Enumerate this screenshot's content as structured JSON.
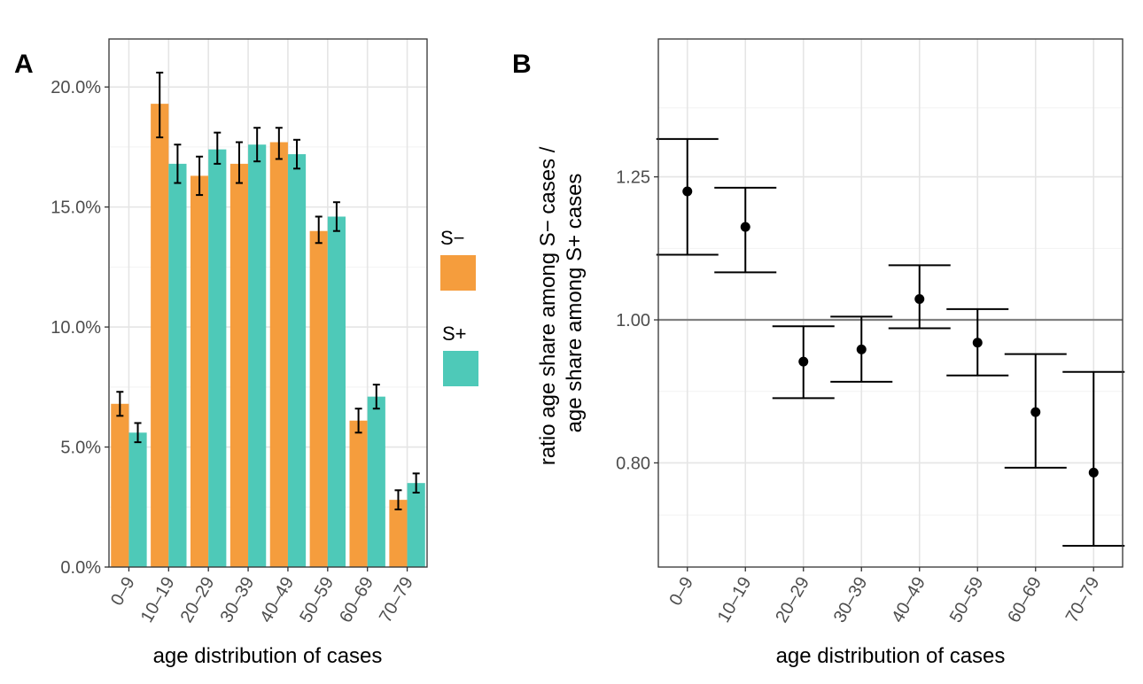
{
  "colors": {
    "s_minus": "#f59d3d",
    "s_plus": "#4ec9b8",
    "refline": "#808080"
  },
  "legend": {
    "items": [
      {
        "label": "S−",
        "color": "#f59d3d"
      },
      {
        "label": "S+",
        "color": "#4ec9b8"
      }
    ]
  },
  "chart_data": [
    {
      "panel": "A",
      "type": "bar",
      "xlabel": "age distribution of cases",
      "categories": [
        "0–9",
        "10–19",
        "20–29",
        "30–39",
        "40–49",
        "50–59",
        "60–69",
        "70–79"
      ],
      "ylim": [
        0,
        0.22
      ],
      "y_ticks": [
        0,
        0.05,
        0.1,
        0.15,
        0.2
      ],
      "y_tick_labels": [
        "0.0%",
        "5.0%",
        "10.0%",
        "15.0%",
        "20.0%"
      ],
      "series": [
        {
          "name": "S−",
          "values": [
            0.068,
            0.193,
            0.163,
            0.168,
            0.177,
            0.14,
            0.061,
            0.028
          ],
          "lower": [
            0.063,
            0.179,
            0.155,
            0.16,
            0.17,
            0.135,
            0.056,
            0.024
          ],
          "upper": [
            0.073,
            0.206,
            0.171,
            0.177,
            0.183,
            0.146,
            0.066,
            0.032
          ]
        },
        {
          "name": "S+",
          "values": [
            0.056,
            0.168,
            0.174,
            0.176,
            0.172,
            0.146,
            0.071,
            0.035
          ],
          "lower": [
            0.052,
            0.16,
            0.168,
            0.169,
            0.166,
            0.14,
            0.066,
            0.031
          ],
          "upper": [
            0.06,
            0.176,
            0.181,
            0.183,
            0.178,
            0.152,
            0.076,
            0.039
          ]
        }
      ]
    },
    {
      "panel": "B",
      "type": "scatter",
      "xlabel": "age distribution of cases",
      "ylabel_lines": [
        "ratio age share among S− cases /",
        "age share among S+ cases"
      ],
      "categories": [
        "0–9",
        "10–19",
        "20–29",
        "30–39",
        "40–49",
        "50–59",
        "60–69",
        "70–79"
      ],
      "y_scale": "log",
      "ylim": [
        0.68,
        1.55
      ],
      "y_ticks": [
        0.8,
        1.0,
        1.25
      ],
      "y_tick_labels": [
        "0.80",
        "1.00",
        "1.25"
      ],
      "reference_line": 1.0,
      "values": [
        1.222,
        1.156,
        0.937,
        0.955,
        1.033,
        0.965,
        0.866,
        0.788
      ],
      "lower": [
        1.107,
        1.077,
        0.885,
        0.908,
        0.987,
        0.917,
        0.794,
        0.703
      ],
      "upper": [
        1.326,
        1.229,
        0.99,
        1.005,
        1.089,
        1.017,
        0.948,
        0.922
      ]
    }
  ]
}
